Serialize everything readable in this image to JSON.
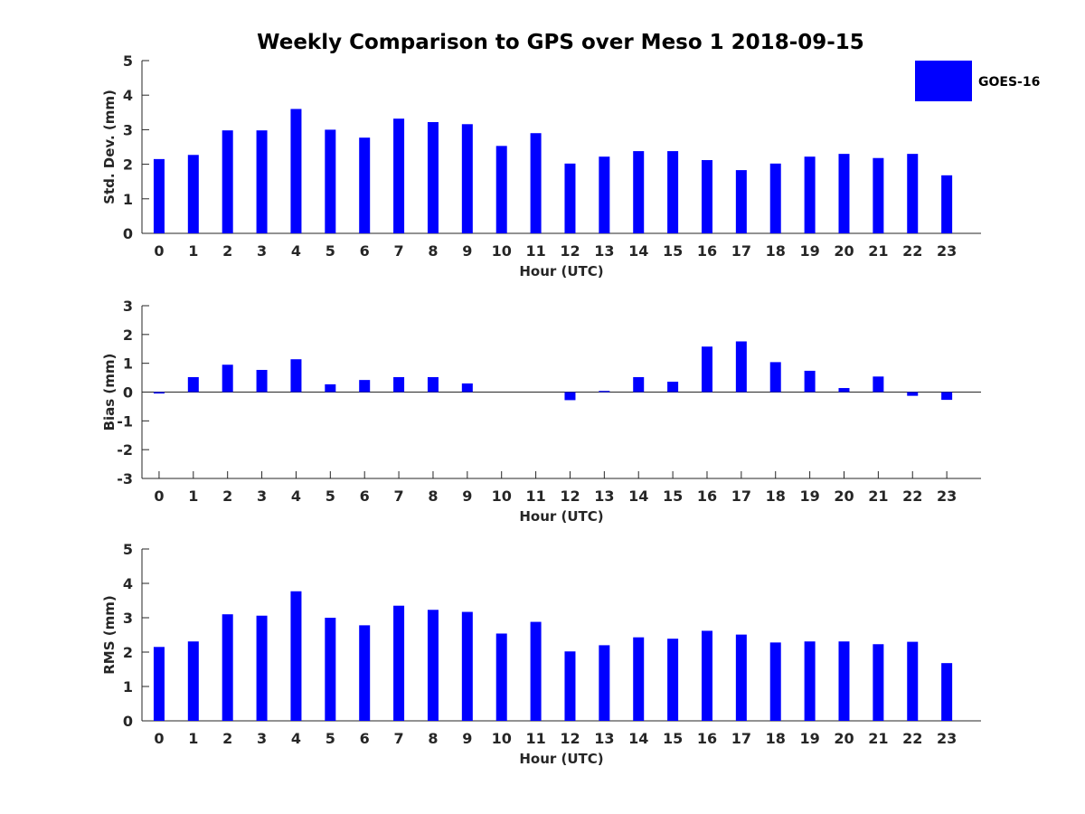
{
  "title": "Weekly Comparison to GPS over Meso 1 2018-09-15",
  "colors": {
    "bar": "#0000ff",
    "axis": "#262626"
  },
  "legend": {
    "label": "GOES-16",
    "position": "top-right"
  },
  "chart_data": [
    {
      "type": "bar",
      "name": "std-dev",
      "xlabel": "Hour (UTC)",
      "ylabel": "Std. Dev. (mm)",
      "ylim": [
        0,
        5
      ],
      "yticks": [
        0,
        1,
        2,
        3,
        4,
        5
      ],
      "categories": [
        "0",
        "1",
        "2",
        "3",
        "4",
        "5",
        "6",
        "7",
        "8",
        "9",
        "10",
        "11",
        "12",
        "13",
        "14",
        "15",
        "16",
        "17",
        "18",
        "19",
        "20",
        "21",
        "22",
        "23"
      ],
      "series": [
        {
          "name": "GOES-16",
          "values": [
            2.15,
            2.27,
            2.98,
            2.98,
            3.6,
            3.0,
            2.77,
            3.32,
            3.22,
            3.16,
            2.53,
            2.9,
            2.02,
            2.22,
            2.38,
            2.38,
            2.12,
            1.83,
            2.02,
            2.22,
            2.3,
            2.18,
            2.3,
            1.68
          ]
        }
      ]
    },
    {
      "type": "bar",
      "name": "bias",
      "xlabel": "Hour (UTC)",
      "ylabel": "Bias (mm)",
      "ylim": [
        -3,
        3
      ],
      "yticks": [
        -3,
        -2,
        -1,
        0,
        1,
        2,
        3
      ],
      "categories": [
        "0",
        "1",
        "2",
        "3",
        "4",
        "5",
        "6",
        "7",
        "8",
        "9",
        "10",
        "11",
        "12",
        "13",
        "14",
        "15",
        "16",
        "17",
        "18",
        "19",
        "20",
        "21",
        "22",
        "23"
      ],
      "series": [
        {
          "name": "GOES-16",
          "values": [
            -0.05,
            0.52,
            0.95,
            0.77,
            1.14,
            0.27,
            0.42,
            0.52,
            0.52,
            0.3,
            0.0,
            0.0,
            -0.28,
            0.04,
            0.52,
            0.36,
            1.58,
            1.76,
            1.04,
            0.74,
            0.14,
            0.54,
            -0.13,
            -0.27
          ]
        }
      ]
    },
    {
      "type": "bar",
      "name": "rms",
      "xlabel": "Hour (UTC)",
      "ylabel": "RMS (mm)",
      "ylim": [
        0,
        5
      ],
      "yticks": [
        0,
        1,
        2,
        3,
        4,
        5
      ],
      "categories": [
        "0",
        "1",
        "2",
        "3",
        "4",
        "5",
        "6",
        "7",
        "8",
        "9",
        "10",
        "11",
        "12",
        "13",
        "14",
        "15",
        "16",
        "17",
        "18",
        "19",
        "20",
        "21",
        "22",
        "23"
      ],
      "series": [
        {
          "name": "GOES-16",
          "values": [
            2.15,
            2.31,
            3.1,
            3.06,
            3.77,
            3.0,
            2.78,
            3.35,
            3.23,
            3.17,
            2.54,
            2.88,
            2.02,
            2.2,
            2.43,
            2.39,
            2.62,
            2.51,
            2.28,
            2.31,
            2.31,
            2.23,
            2.3,
            1.68
          ]
        }
      ]
    }
  ]
}
